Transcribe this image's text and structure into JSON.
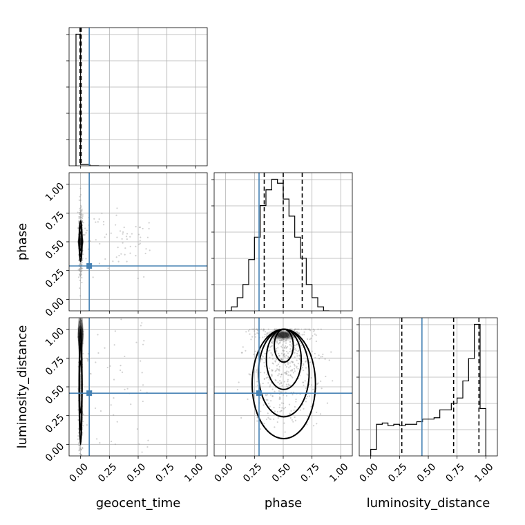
{
  "chart_data": {
    "type": "corner",
    "parameters": [
      "geocent_time",
      "phase",
      "luminosity_distance"
    ],
    "axis_ticks": [
      "0.00",
      "0.25",
      "0.50",
      "0.75",
      "1.00"
    ],
    "range": [
      -0.1,
      1.1
    ],
    "grid": true,
    "truths": {
      "geocent_time": 0.075,
      "phase": 0.29,
      "luminosity_distance": 0.445
    },
    "truth_color": "#4682b4",
    "diagonal": [
      {
        "parameter": "geocent_time",
        "bin_edges": [
          -0.04,
          0.0,
          0.08,
          0.16
        ],
        "counts": [
          1.0,
          0.01,
          0.0
        ],
        "quantiles": [
          -0.005,
          0.0,
          0.005
        ]
      },
      {
        "parameter": "phase",
        "bin_edges": [
          0.0,
          0.05,
          0.1,
          0.15,
          0.2,
          0.25,
          0.3,
          0.35,
          0.4,
          0.45,
          0.5,
          0.55,
          0.6,
          0.65,
          0.7,
          0.75,
          0.8,
          0.85,
          0.9
        ],
        "counts": [
          0.0,
          0.03,
          0.1,
          0.2,
          0.39,
          0.56,
          0.8,
          0.92,
          1.0,
          0.97,
          0.85,
          0.72,
          0.56,
          0.4,
          0.2,
          0.1,
          0.03,
          0.0
        ],
        "quantiles": [
          0.335,
          0.5,
          0.665
        ]
      },
      {
        "parameter": "luminosity_distance",
        "bin_edges": [
          0.0,
          0.05,
          0.1,
          0.15,
          0.2,
          0.25,
          0.3,
          0.35,
          0.4,
          0.45,
          0.5,
          0.55,
          0.6,
          0.65,
          0.7,
          0.75,
          0.8,
          0.85,
          0.9,
          0.95,
          1.0
        ],
        "counts": [
          0.05,
          0.24,
          0.25,
          0.23,
          0.24,
          0.23,
          0.24,
          0.24,
          0.26,
          0.28,
          0.28,
          0.29,
          0.35,
          0.35,
          0.4,
          0.44,
          0.57,
          0.74,
          1.0,
          0.36
        ],
        "quantiles": [
          0.27,
          0.72,
          0.94
        ]
      }
    ],
    "off_diagonal": [
      {
        "x": "geocent_time",
        "y": "phase",
        "peak": [
          0.0,
          0.5
        ],
        "extent_x": [
          -0.02,
          0.02
        ],
        "extent_y": [
          0.33,
          0.68
        ]
      },
      {
        "x": "geocent_time",
        "y": "luminosity_distance",
        "peak": [
          0.0,
          0.95
        ],
        "extent_x": [
          -0.02,
          0.02
        ],
        "extent_y": [
          0.0,
          1.0
        ]
      },
      {
        "x": "phase",
        "y": "luminosity_distance",
        "peak": [
          0.5,
          0.95
        ],
        "extent_x": [
          0.23,
          0.78
        ],
        "extent_y": [
          0.05,
          1.0
        ]
      }
    ]
  }
}
